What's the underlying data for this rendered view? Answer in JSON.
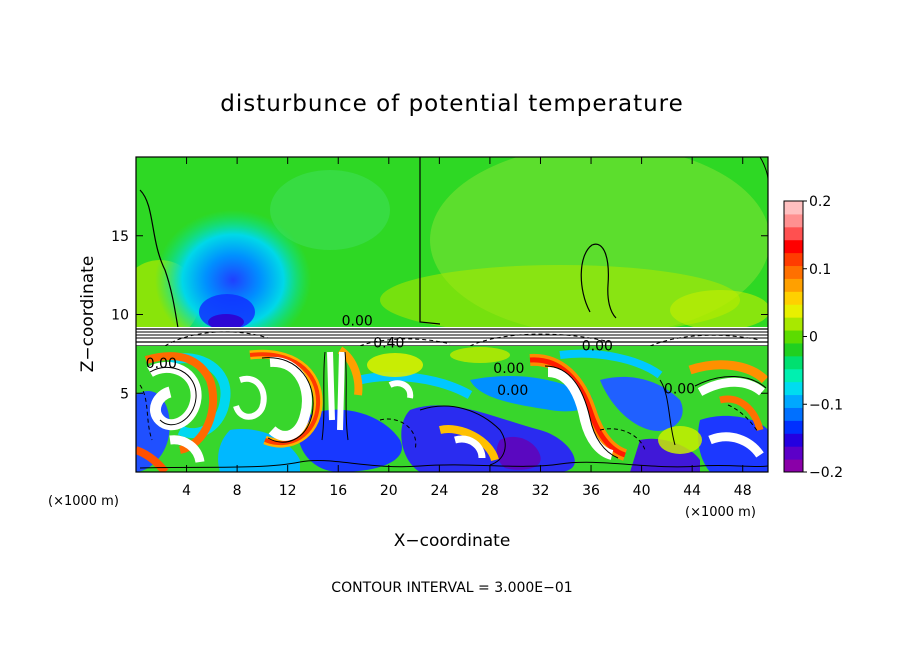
{
  "chart_data": {
    "type": "heatmap",
    "title": "disturbunce of potential temperature",
    "xlabel": "X−coordinate",
    "ylabel": "Z−coordinate",
    "x_unit": "(×1000 m)",
    "x_unit_right": "(×1000 m)",
    "xlim": [
      0,
      50
    ],
    "ylim": [
      0,
      20
    ],
    "x_ticks": [
      "4",
      "8",
      "12",
      "16",
      "20",
      "24",
      "28",
      "32",
      "36",
      "40",
      "44",
      "48"
    ],
    "x_tick_values": [
      4,
      8,
      12,
      16,
      20,
      24,
      28,
      32,
      36,
      40,
      44,
      48
    ],
    "y_ticks": [
      "5",
      "10",
      "15"
    ],
    "y_tick_values": [
      5,
      10,
      15
    ],
    "colorbar": {
      "range": [
        -0.2,
        0.2
      ],
      "ticks": [
        "0.2",
        "0.1",
        "0",
        "−0.1",
        "−0.2"
      ],
      "tick_values": [
        0.2,
        0.1,
        0,
        -0.1,
        -0.2
      ],
      "colors": [
        "#8a00a8",
        "#5c00c8",
        "#2400e0",
        "#0030ff",
        "#0070ff",
        "#00a8ff",
        "#00dcf0",
        "#00f0b0",
        "#00e070",
        "#20d020",
        "#5cdc00",
        "#a8e800",
        "#e8f000",
        "#ffd000",
        "#ffa000",
        "#ff7000",
        "#ff3c00",
        "#ff0000",
        "#ff5050",
        "#ff9090",
        "#ffc0c0"
      ]
    },
    "contour_labels": [
      {
        "text": "0.00",
        "x": 17.5,
        "z": 9.3
      },
      {
        "text": "0.00",
        "x": 2.0,
        "z": 6.6
      },
      {
        "text": "0.00",
        "x": 29.5,
        "z": 6.3
      },
      {
        "text": "0.00",
        "x": 29.8,
        "z": 4.9
      },
      {
        "text": "0.00",
        "x": 36.5,
        "z": 7.7
      },
      {
        "text": "0.00",
        "x": 43.0,
        "z": 5.0
      },
      {
        "text": "0.40",
        "x": 20.0,
        "z": 7.9
      }
    ],
    "annotation": "CONTOUR INTERVAL = 3.000E−01"
  }
}
